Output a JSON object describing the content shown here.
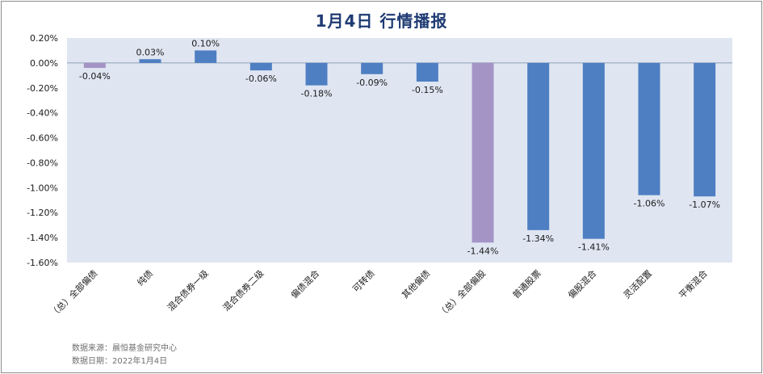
{
  "chart_data": {
    "type": "bar",
    "title": "1月4日  行情播报",
    "categories": [
      "（总）全部偏债",
      "纯债",
      "混合债券一级",
      "混合债券二级",
      "偏债混合",
      "可转债",
      "其他偏债",
      "（总）全部偏股",
      "普通股票",
      "偏股混合",
      "灵活配置",
      "平衡混合"
    ],
    "values": [
      -0.04,
      0.03,
      0.1,
      -0.06,
      -0.18,
      -0.09,
      -0.15,
      -1.44,
      -1.34,
      -1.41,
      -1.06,
      -1.07
    ],
    "value_labels": [
      "-0.04%",
      "0.03%",
      "0.10%",
      "-0.06%",
      "-0.18%",
      "-0.09%",
      "-0.15%",
      "-1.44%",
      "-1.34%",
      "-1.41%",
      "-1.06%",
      "-1.07%"
    ],
    "highlight": [
      true,
      false,
      false,
      false,
      false,
      false,
      false,
      true,
      false,
      false,
      false,
      false
    ],
    "yticks": [
      0.2,
      0.0,
      -0.2,
      -0.4,
      -0.6,
      -0.8,
      -1.0,
      -1.2,
      -1.4,
      -1.6
    ],
    "ytick_labels": [
      "0.20%",
      "0.00%",
      "-0.20%",
      "-0.40%",
      "-0.60%",
      "-0.80%",
      "-1.00%",
      "-1.20%",
      "-1.40%",
      "-1.60%"
    ],
    "ylim": [
      -1.6,
      0.2
    ],
    "xlabel": "",
    "ylabel": "",
    "grid": false,
    "colors": {
      "bar": "#4e7fc2",
      "highlight": "#a494c6",
      "plot_bg": "#dfe6f2",
      "zero_line": "#8fa0b8"
    }
  },
  "footnote": {
    "source": "数据来源：晨恒基金研究中心",
    "date": "数据日期：2022年1月4日"
  }
}
